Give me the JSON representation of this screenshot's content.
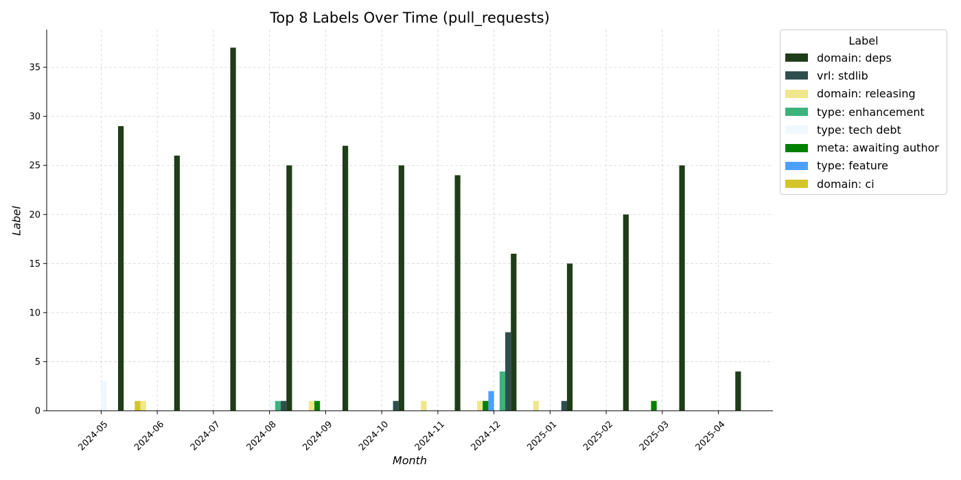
{
  "chart_data": {
    "type": "bar",
    "title": "Top 8 Labels Over Time (pull_requests)",
    "xlabel": "Month",
    "ylabel": "Label",
    "ylim": [
      0,
      38.85
    ],
    "yticks": [
      0,
      5,
      10,
      15,
      20,
      25,
      30,
      35
    ],
    "grid": true,
    "legend_title": "Label",
    "legend_position": "outside-right",
    "categories": [
      "2024-05",
      "2024-06",
      "2024-07",
      "2024-08",
      "2024-09",
      "2024-10",
      "2024-11",
      "2024-12",
      "2025-01",
      "2025-02",
      "2025-03",
      "2025-04"
    ],
    "series": [
      {
        "name": "domain: ci",
        "color": "#d4c52a",
        "values": [
          0,
          1,
          0,
          0,
          0,
          0,
          0,
          0,
          0,
          0,
          0,
          0
        ]
      },
      {
        "name": "domain: releasing",
        "color": "#f0e68c",
        "values": [
          0,
          1,
          0,
          0,
          1,
          0,
          1,
          1,
          1,
          0,
          0,
          0
        ]
      },
      {
        "name": "meta: awaiting author",
        "color": "#008000",
        "values": [
          0,
          0,
          0,
          0,
          1,
          0,
          0,
          1,
          0,
          0,
          1,
          0
        ]
      },
      {
        "name": "type: feature",
        "color": "#4d9fff",
        "values": [
          0,
          0,
          0,
          0,
          0,
          0,
          0,
          2,
          0,
          0,
          0,
          0
        ]
      },
      {
        "name": "type: tech debt",
        "color": "#f0f8ff",
        "values": [
          3,
          0,
          0,
          1,
          0,
          0,
          0,
          0,
          0,
          0,
          0,
          0
        ]
      },
      {
        "name": "type: enhancement",
        "color": "#3cb37a",
        "values": [
          0,
          0,
          0,
          1,
          0,
          0,
          0,
          4,
          0,
          0,
          0,
          0
        ]
      },
      {
        "name": "vrl: stdlib",
        "color": "#2f4f4f",
        "values": [
          0,
          0,
          0,
          1,
          0,
          1,
          0,
          8,
          1,
          0,
          0,
          0
        ]
      },
      {
        "name": "domain: deps",
        "color": "#1f3d18",
        "values": [
          29,
          26,
          37,
          25,
          27,
          25,
          24,
          16,
          15,
          20,
          25,
          4
        ]
      }
    ],
    "legend_order": [
      "domain: deps",
      "vrl: stdlib",
      "domain: releasing",
      "type: enhancement",
      "type: tech debt",
      "meta: awaiting author",
      "type: feature",
      "domain: ci"
    ]
  }
}
